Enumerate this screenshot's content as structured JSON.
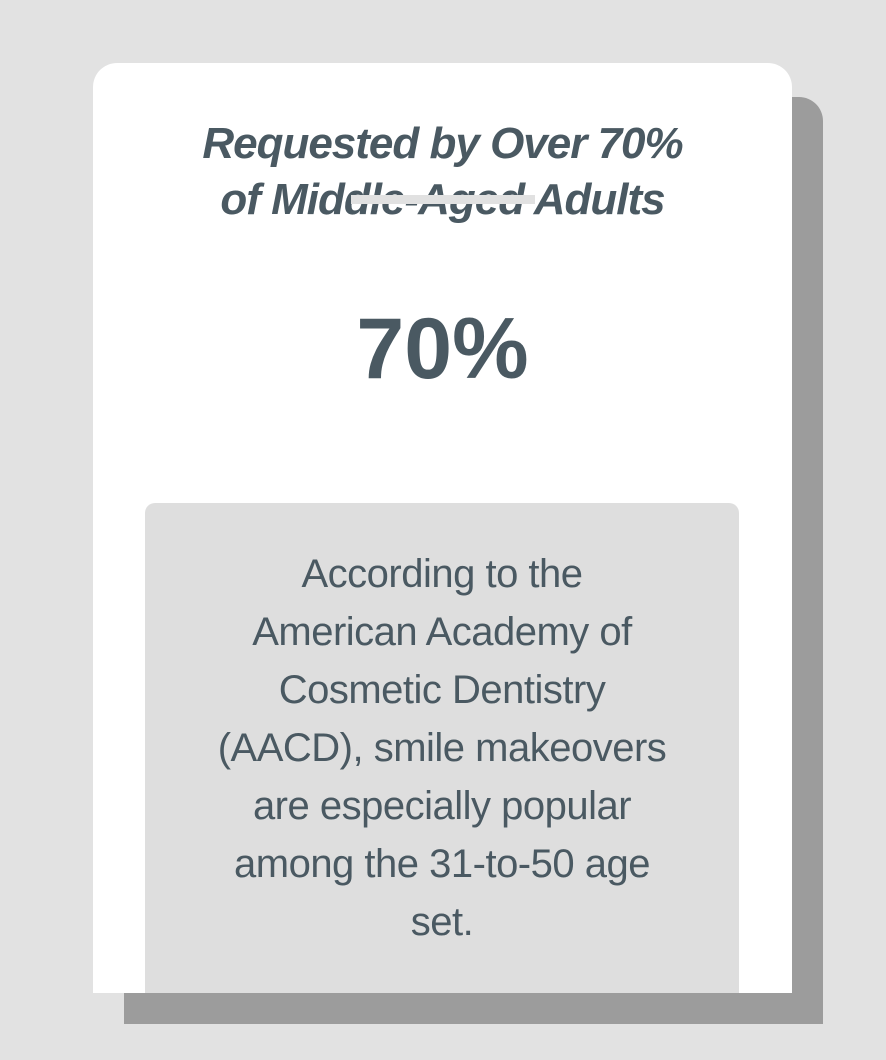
{
  "page": {
    "background_color": "#e2e2e2"
  },
  "card": {
    "background_color": "#ffffff",
    "shadow_color": "#9c9c9c",
    "text_color": "#4a5962",
    "title": "Requested by Over 70%\nof Middle-Aged Adults",
    "underline_color": "#e1e1e1",
    "stat_value": "70%",
    "note_box_color": "#dedede",
    "note": "According to the\nAmerican Academy of\nCosmetic Dentistry\n(AACD), smile makeovers\nare especially popular\namong the 31-to-50 age\nset."
  },
  "chart_data": {
    "type": "table",
    "title": "Requested by Over 70% of Middle-Aged Adults",
    "stat_value": "70%",
    "stat_numeric": 70,
    "note": "According to the American Academy of Cosmetic Dentistry (AACD), smile makeovers are especially popular among the 31-to-50 age set."
  }
}
